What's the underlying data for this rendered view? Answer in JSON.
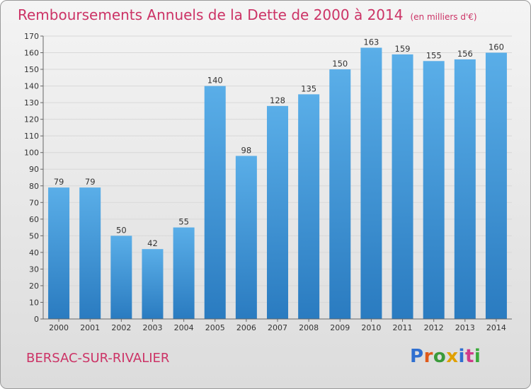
{
  "page": {
    "title": "Remboursements Annuels de la Dette de 2000 à 2014",
    "unit_note": "(en milliers d'€)",
    "commune": "BERSAC-SUR-RIVALIER",
    "logo": {
      "letters": [
        "P",
        "r",
        "o",
        "x",
        "i",
        "t",
        "i"
      ],
      "colors": [
        "#2f6fd0",
        "#e05a1a",
        "#3a9a3a",
        "#e0a000",
        "#2f6fd0",
        "#d03a8a",
        "#3aaa3a"
      ]
    }
  },
  "colors": {
    "title": "#cc3366",
    "bar_light": "#5aaee8",
    "bar_dark": "#2a7bc0",
    "grid": "#d8d8d8",
    "axis": "#666666"
  },
  "chart_data": {
    "type": "bar",
    "categories": [
      "2000",
      "2001",
      "2002",
      "2003",
      "2004",
      "2005",
      "2006",
      "2007",
      "2008",
      "2009",
      "2010",
      "2011",
      "2012",
      "2013",
      "2014"
    ],
    "values": [
      79,
      79,
      50,
      42,
      55,
      140,
      98,
      128,
      135,
      150,
      163,
      159,
      155,
      156,
      160
    ],
    "ylim": [
      0,
      170
    ],
    "yticks": [
      0,
      10,
      20,
      30,
      40,
      50,
      60,
      70,
      80,
      90,
      100,
      110,
      120,
      130,
      140,
      150,
      160,
      170
    ],
    "grid": true,
    "legend": "none"
  }
}
